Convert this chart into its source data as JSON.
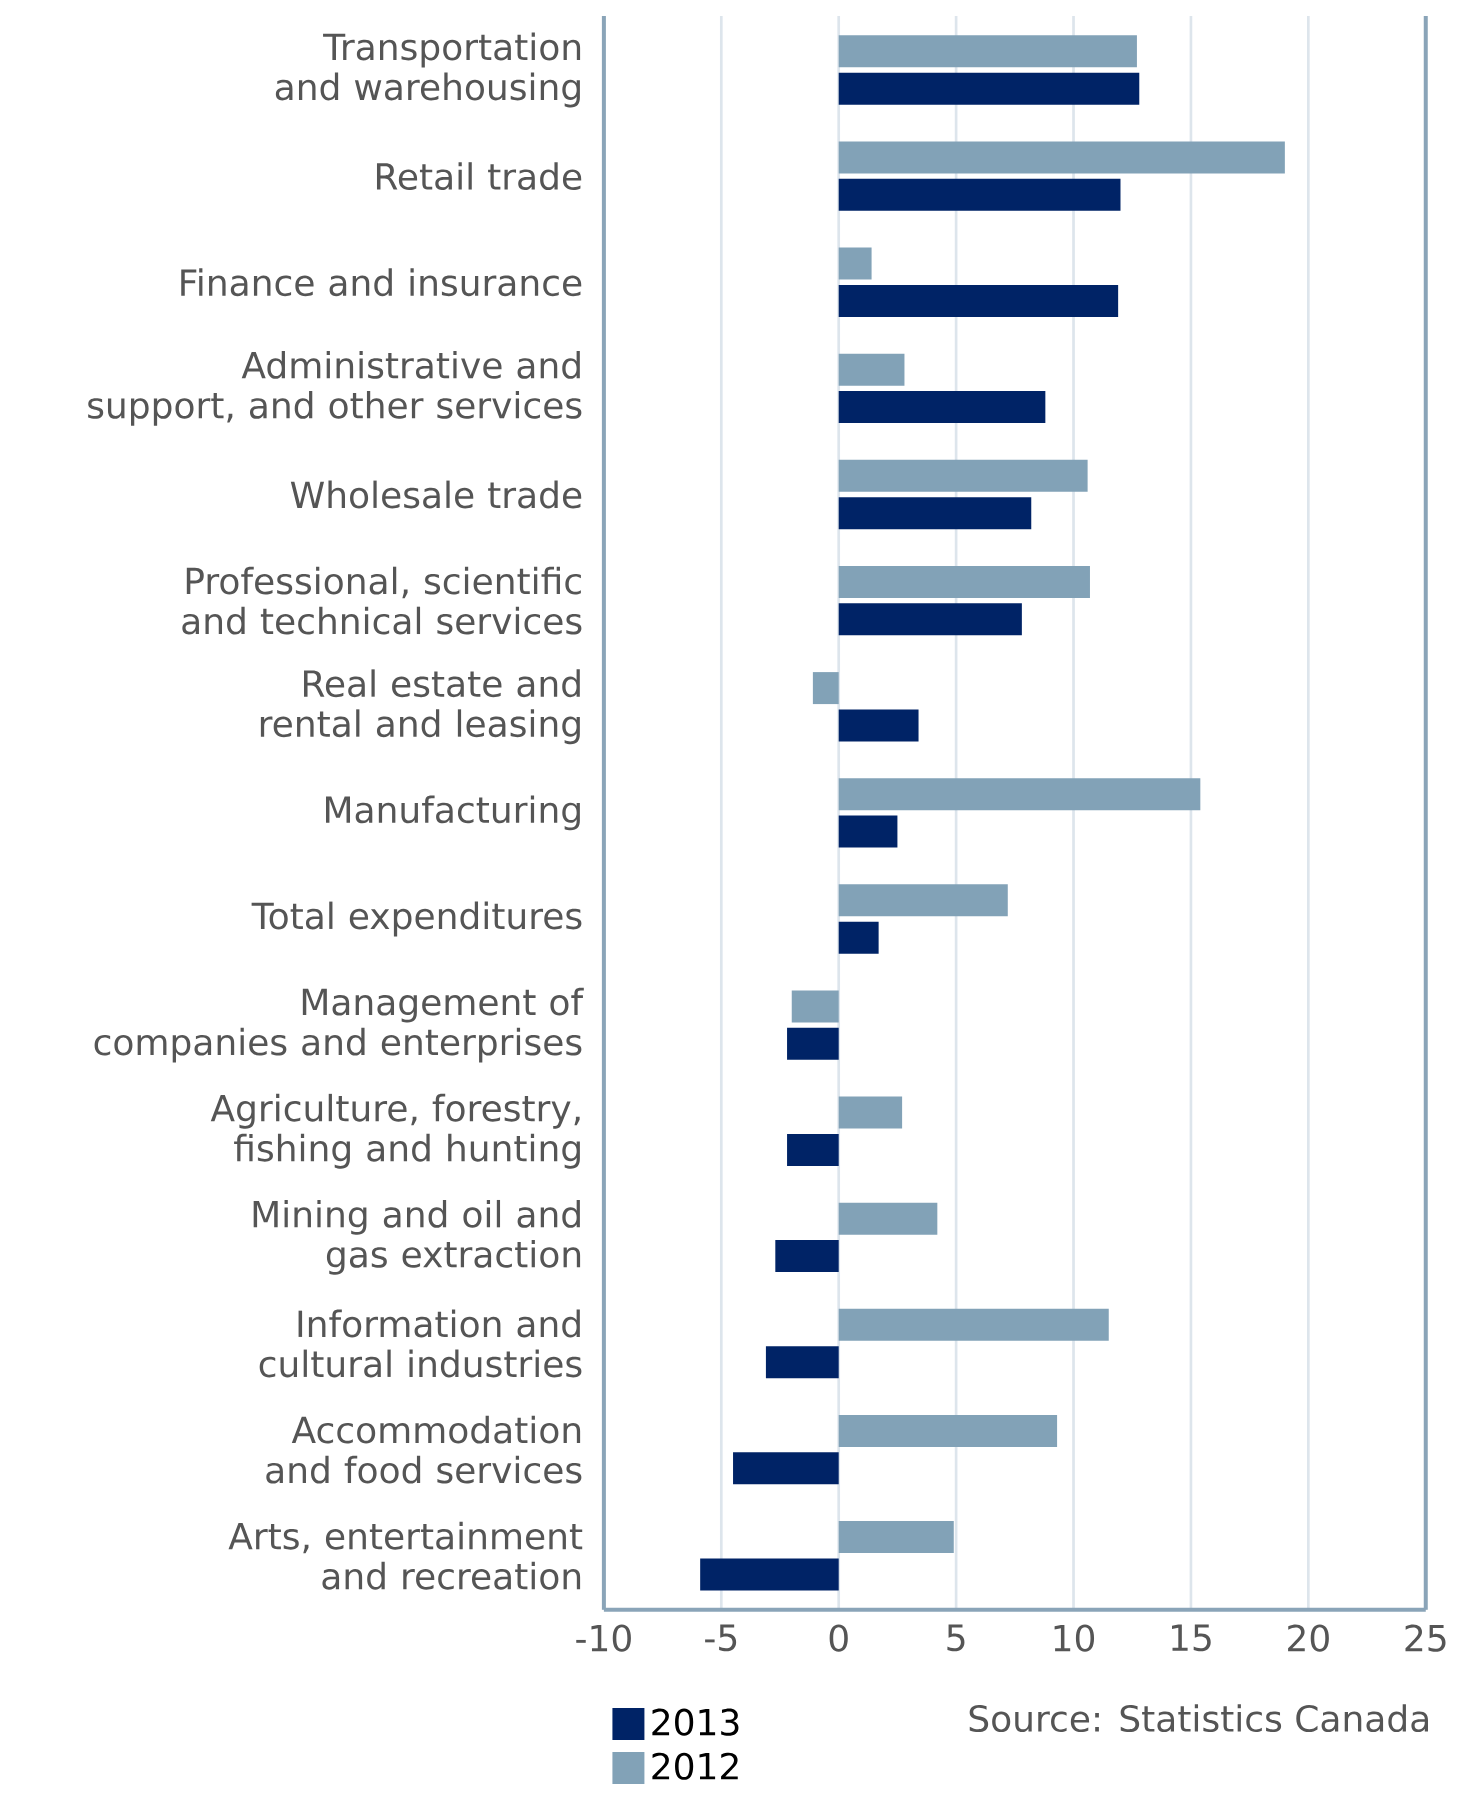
{
  "chart_data": {
    "type": "bar",
    "orientation": "horizontal",
    "categories": [
      "Transportation and warehousing",
      "Retail trade",
      "Finance and insurance",
      "Administrative and support, and other services",
      "Wholesale trade",
      "Professional, scientific and technical services",
      "Real estate and rental and leasing",
      "Manufacturing",
      "Total expenditures",
      "Management of companies and enterprises",
      "Agriculture, forestry, fishing and hunting",
      "Mining and oil and gas extraction",
      "Information and cultural industries",
      "Accommodation and food services",
      "Arts, entertainment and recreation"
    ],
    "series": [
      {
        "name": "2013",
        "color": "#002366",
        "values": [
          12.8,
          12.0,
          11.9,
          8.8,
          8.2,
          7.8,
          3.4,
          2.5,
          1.7,
          -2.2,
          -2.2,
          -2.7,
          -3.1,
          -4.5,
          -5.9
        ]
      },
      {
        "name": "2012",
        "color": "#82a2b7",
        "values": [
          12.7,
          19.0,
          1.4,
          2.8,
          10.6,
          10.7,
          -1.1,
          15.4,
          7.2,
          -2.0,
          2.7,
          4.2,
          11.5,
          9.3,
          4.9
        ]
      }
    ],
    "xlim": [
      -10,
      25
    ],
    "xticks": [
      -10,
      -5,
      0,
      5,
      10,
      15,
      20,
      25
    ],
    "grid": "x",
    "legend": "bottom left",
    "annotations": [
      "Source: Statistics Canada"
    ]
  }
}
